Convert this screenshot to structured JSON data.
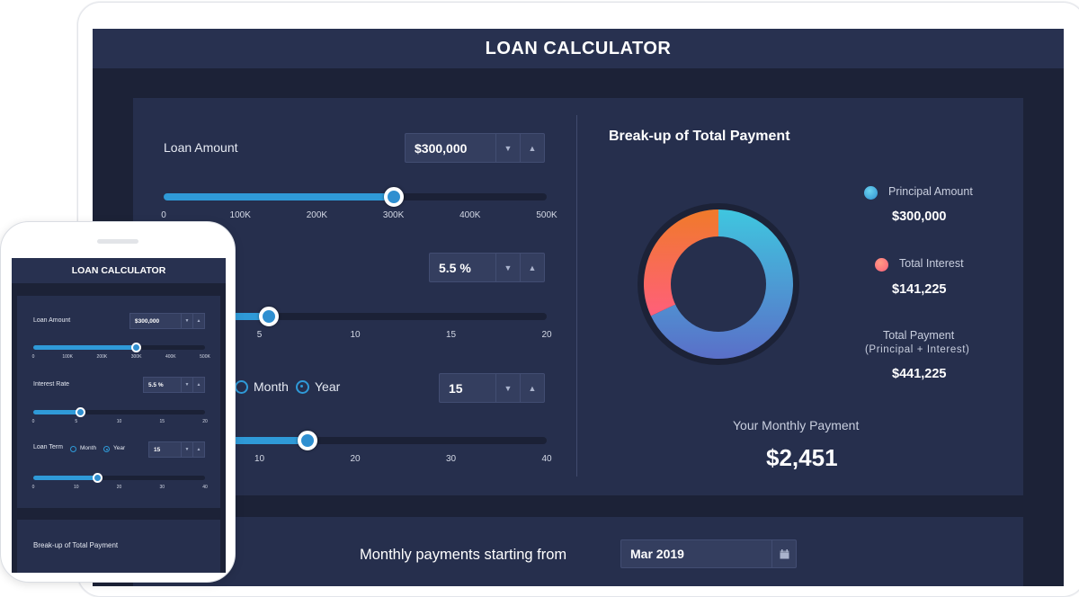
{
  "title": "LOAN CALCULATOR",
  "loan_amount": {
    "label": "Loan Amount",
    "value": "$300,000",
    "slider_fraction": 0.6,
    "ticks": [
      "0",
      "100K",
      "200K",
      "300K",
      "400K",
      "500K"
    ]
  },
  "interest_rate": {
    "label": "Interest Rate",
    "value": "5.5 %",
    "slider_fraction": 0.275,
    "ticks": [
      "0",
      "5",
      "10",
      "15",
      "20"
    ]
  },
  "loan_term": {
    "label": "Loan Term",
    "option_month": "Month",
    "option_year": "Year",
    "selected": "Year",
    "value": "15",
    "slider_fraction": 0.375,
    "ticks": [
      "0",
      "10",
      "20",
      "30",
      "40"
    ]
  },
  "breakup": {
    "title": "Break-up of Total Payment",
    "principal_label": "Principal Amount",
    "principal_value": "$300,000",
    "interest_label": "Total Interest",
    "interest_value": "$141,225",
    "total_label": "Total Payment",
    "total_sublabel": "(Principal + Interest)",
    "total_value": "$441,225",
    "monthly_label": "Your Monthly Payment",
    "monthly_value": "$2,451"
  },
  "chart_data": {
    "type": "pie",
    "categories": [
      "Principal Amount",
      "Total Interest"
    ],
    "values": [
      300000,
      141225
    ],
    "colors": [
      "#3fc3de",
      "#ff5f7a"
    ]
  },
  "schedule": {
    "label": "Monthly payments starting from",
    "start_value": "Mar 2019"
  },
  "icons": {
    "spin_down": "▼",
    "spin_up": "▲",
    "calendar": "calendar-icon"
  },
  "colors": {
    "accent": "#2f9ad8",
    "background": "#1c2237",
    "panel": "#262f4d"
  }
}
